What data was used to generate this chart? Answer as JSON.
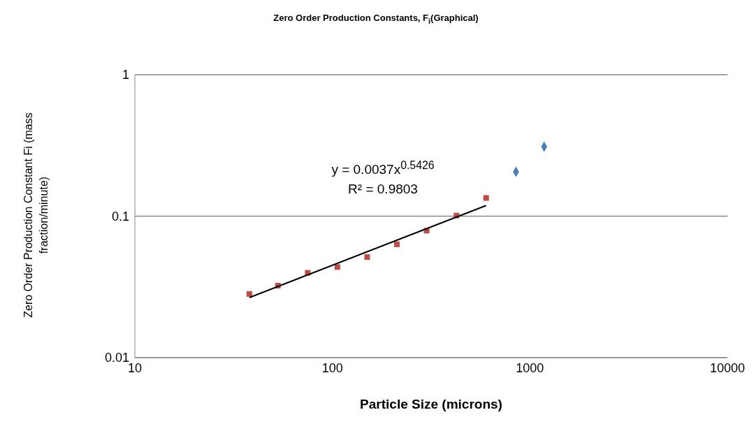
{
  "chart_data": {
    "type": "scatter",
    "title": "Zero Order Production Constants, F$_{i}$(Graphical)",
    "xlabel": "Particle Size (microns)",
    "ylabel": "Zero Order Production Constant Fi (mass fraction/minute)",
    "annotations": [
      "y = 0.0037x$^{0.5426}$",
      "R² = 0.9803"
    ],
    "log": "xy",
    "grid": "y",
    "xlim": [
      10,
      10000
    ],
    "xticks": [
      10,
      100,
      1000,
      10000
    ],
    "ylim": [
      0.01,
      1
    ],
    "yticks": [
      0.01,
      0.1,
      1
    ],
    "series": [
      {
        "marker": "diamond",
        "color": "#4a7ebb",
        "x": [
          850,
          1180
        ],
        "values": [
          0.206,
          0.31
        ]
      },
      {
        "marker": "square",
        "color": "#be4b48",
        "x": [
          38,
          53,
          75,
          106,
          150,
          212,
          300,
          425,
          600
        ],
        "values": [
          0.0282,
          0.0323,
          0.0398,
          0.0437,
          0.0514,
          0.0633,
          0.079,
          0.101,
          0.1345
        ]
      },
      {
        "type": "line",
        "marker": "none",
        "color": "#000000",
        "x": [
          38,
          600
        ],
        "values": [
          0.0266,
          0.119
        ]
      }
    ]
  }
}
